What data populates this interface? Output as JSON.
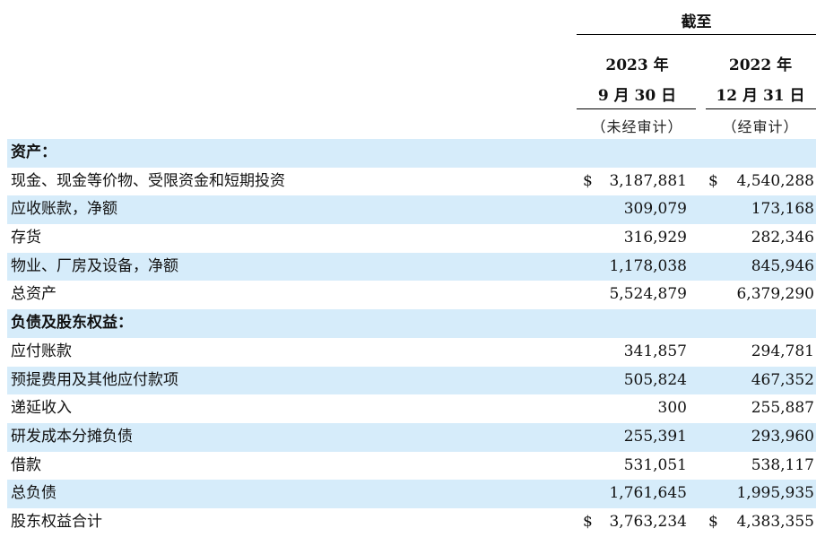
{
  "header": {
    "as_of": "截至",
    "col1_year": "2023 年",
    "col1_date": "9 月 30 日",
    "col1_note": "（未经审计）",
    "col2_year": "2022 年",
    "col2_date": "12 月 31 日",
    "col2_note": "（经审计）"
  },
  "rows": [
    {
      "label": "资产：",
      "section": true,
      "shaded": true,
      "v1": "",
      "v2": "",
      "currency": false
    },
    {
      "label": "现金、现金等价物、受限资金和短期投资",
      "section": false,
      "shaded": false,
      "v1": "3,187,881",
      "v2": "4,540,288",
      "currency": true
    },
    {
      "label": "应收账款，净额",
      "section": false,
      "shaded": true,
      "v1": "309,079",
      "v2": "173,168",
      "currency": false
    },
    {
      "label": "存货",
      "section": false,
      "shaded": false,
      "v1": "316,929",
      "v2": "282,346",
      "currency": false
    },
    {
      "label": "物业、厂房及设备，净额",
      "section": false,
      "shaded": true,
      "v1": "1,178,038",
      "v2": "845,946",
      "currency": false
    },
    {
      "label": "总资产",
      "section": false,
      "shaded": false,
      "v1": "5,524,879",
      "v2": "6,379,290",
      "currency": false
    },
    {
      "label": "负债及股东权益：",
      "section": true,
      "shaded": true,
      "v1": "",
      "v2": "",
      "currency": false
    },
    {
      "label": "应付账款",
      "section": false,
      "shaded": false,
      "v1": "341,857",
      "v2": "294,781",
      "currency": false
    },
    {
      "label": "预提费用及其他应付款项",
      "section": false,
      "shaded": true,
      "v1": "505,824",
      "v2": "467,352",
      "currency": false
    },
    {
      "label": "递延收入",
      "section": false,
      "shaded": false,
      "v1": "300",
      "v2": "255,887",
      "currency": false
    },
    {
      "label": "研发成本分摊负债",
      "section": false,
      "shaded": true,
      "v1": "255,391",
      "v2": "293,960",
      "currency": false
    },
    {
      "label": "借款",
      "section": false,
      "shaded": false,
      "v1": "531,051",
      "v2": "538,117",
      "currency": false
    },
    {
      "label": "总负债",
      "section": false,
      "shaded": true,
      "v1": "1,761,645",
      "v2": "1,995,935",
      "currency": false
    },
    {
      "label": "股东权益合计",
      "section": false,
      "shaded": false,
      "v1": "3,763,234",
      "v2": "4,383,355",
      "currency": true
    }
  ],
  "currency_symbol": "$"
}
